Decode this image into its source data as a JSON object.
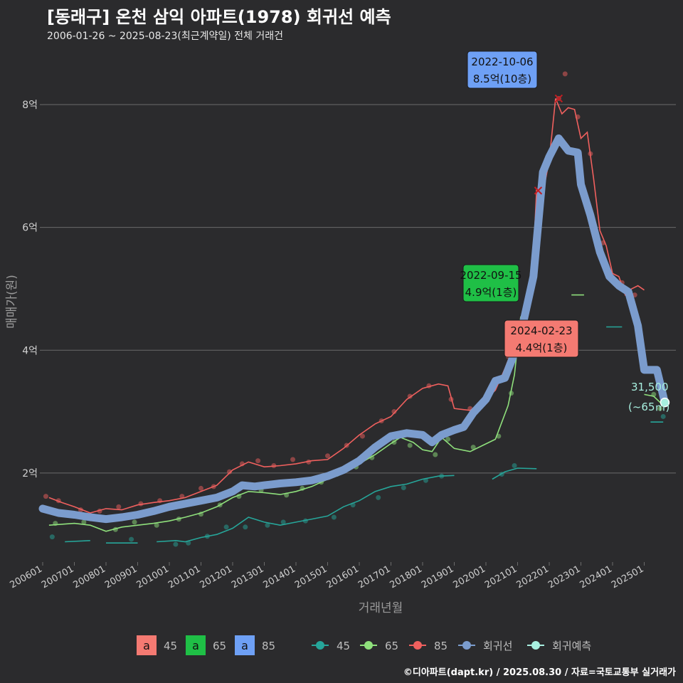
{
  "header": {
    "title": "[동래구] 온천 삼익 아파트(1978) 회귀선 예측",
    "subtitle": "2006-01-26 ~ 2025-08-23(최근계약일) 전체 거래건"
  },
  "footer": {
    "credit": "©디아파트(dapt.kr) / 2025.08.30 / 자료=국토교통부 실거래가"
  },
  "colors": {
    "background": "#2b2b2d",
    "grid": "#6b6b6b",
    "s45": "#26a69a",
    "s65": "#8fe07c",
    "s85": "#f0605e",
    "regression": "#7b9ccd",
    "forecast": "#a8f0e0",
    "label45fill": "#f47a72",
    "label65fill": "#1fbf46",
    "label85fill": "#6ea0f5"
  },
  "chart_data": {
    "type": "line",
    "title": "[동래구] 온천 삼익 아파트(1978) 회귀선 예측",
    "xlabel": "거래년월",
    "ylabel": "매매가(원)",
    "xlim": [
      2006.0,
      2026.0
    ],
    "ylim": [
      0.55,
      8.8
    ],
    "y_ticks": [
      {
        "value": 2,
        "label": "2억"
      },
      {
        "value": 4,
        "label": "4억"
      },
      {
        "value": 6,
        "label": "6억"
      },
      {
        "value": 8,
        "label": "8억"
      }
    ],
    "x_ticks": [
      "200601",
      "200701",
      "200801",
      "200901",
      "201001",
      "201101",
      "201201",
      "201301",
      "201401",
      "201501",
      "201601",
      "201701",
      "201801",
      "201901",
      "202001",
      "202101",
      "202201",
      "202301",
      "202401",
      "202501"
    ],
    "series": [
      {
        "name": "45",
        "key": "s45",
        "segments": [
          [
            [
              2006.7,
              0.88
            ],
            [
              2007.5,
              0.9
            ]
          ],
          [
            [
              2008.0,
              0.86
            ],
            [
              2009.0,
              0.86
            ]
          ],
          [
            [
              2009.6,
              0.88
            ],
            [
              2010.2,
              0.9
            ],
            [
              2010.5,
              0.88
            ],
            [
              2011.0,
              0.95
            ],
            [
              2011.5,
              1.0
            ],
            [
              2012.0,
              1.1
            ],
            [
              2012.5,
              1.28
            ],
            [
              2013.0,
              1.2
            ],
            [
              2013.5,
              1.15
            ],
            [
              2014.0,
              1.2
            ],
            [
              2014.5,
              1.25
            ],
            [
              2015.0,
              1.3
            ],
            [
              2015.5,
              1.45
            ],
            [
              2016.0,
              1.55
            ],
            [
              2016.5,
              1.7
            ],
            [
              2017.0,
              1.78
            ],
            [
              2017.5,
              1.82
            ],
            [
              2018.0,
              1.9
            ],
            [
              2018.5,
              1.95
            ],
            [
              2019.0,
              1.96
            ]
          ],
          [
            [
              2020.2,
              1.9
            ],
            [
              2020.6,
              2.02
            ],
            [
              2021.0,
              2.08
            ],
            [
              2021.6,
              2.07
            ]
          ],
          [
            [
              2023.8,
              4.38
            ],
            [
              2024.3,
              4.38
            ]
          ],
          [
            [
              2025.2,
              2.83
            ],
            [
              2025.6,
              2.83
            ]
          ]
        ],
        "points": [
          [
            2006.3,
            0.96
          ],
          [
            2008.8,
            0.92
          ],
          [
            2010.2,
            0.84
          ],
          [
            2010.6,
            0.86
          ],
          [
            2011.2,
            0.97
          ],
          [
            2011.8,
            1.12
          ],
          [
            2012.4,
            1.12
          ],
          [
            2013.1,
            1.15
          ],
          [
            2013.6,
            1.2
          ],
          [
            2014.3,
            1.22
          ],
          [
            2015.2,
            1.28
          ],
          [
            2015.8,
            1.48
          ],
          [
            2016.6,
            1.6
          ],
          [
            2017.4,
            1.76
          ],
          [
            2018.1,
            1.88
          ],
          [
            2018.6,
            1.95
          ],
          [
            2020.5,
            1.98
          ],
          [
            2020.9,
            2.12
          ],
          [
            2025.6,
            2.92
          ]
        ]
      },
      {
        "name": "65",
        "key": "s65",
        "segments": [
          [
            [
              2006.2,
              1.15
            ],
            [
              2007.0,
              1.18
            ],
            [
              2007.5,
              1.15
            ],
            [
              2008.0,
              1.05
            ],
            [
              2008.5,
              1.12
            ],
            [
              2009.0,
              1.15
            ],
            [
              2009.5,
              1.18
            ],
            [
              2010.0,
              1.22
            ],
            [
              2010.5,
              1.28
            ],
            [
              2011.0,
              1.35
            ],
            [
              2011.5,
              1.45
            ],
            [
              2012.0,
              1.6
            ],
            [
              2012.5,
              1.7
            ],
            [
              2013.0,
              1.68
            ],
            [
              2013.5,
              1.65
            ],
            [
              2014.0,
              1.7
            ],
            [
              2014.5,
              1.78
            ],
            [
              2015.0,
              1.9
            ],
            [
              2015.5,
              2.05
            ],
            [
              2016.0,
              2.15
            ],
            [
              2016.5,
              2.3
            ],
            [
              2017.0,
              2.48
            ],
            [
              2017.3,
              2.58
            ],
            [
              2017.7,
              2.5
            ],
            [
              2018.0,
              2.38
            ],
            [
              2018.3,
              2.35
            ],
            [
              2018.6,
              2.58
            ],
            [
              2019.0,
              2.4
            ],
            [
              2019.5,
              2.35
            ],
            [
              2019.9,
              2.45
            ],
            [
              2020.3,
              2.55
            ],
            [
              2020.7,
              3.1
            ],
            [
              2020.9,
              3.6
            ],
            [
              2021.1,
              4.55
            ]
          ],
          [
            [
              2022.7,
              4.9
            ],
            [
              2023.1,
              4.9
            ]
          ],
          [
            [
              2025.0,
              3.28
            ],
            [
              2025.3,
              3.25
            ],
            [
              2025.5,
              3.15
            ],
            [
              2025.6,
              3.15
            ]
          ]
        ],
        "points": [
          [
            2006.4,
            1.18
          ],
          [
            2007.3,
            1.2
          ],
          [
            2008.3,
            1.08
          ],
          [
            2008.9,
            1.2
          ],
          [
            2009.6,
            1.15
          ],
          [
            2010.3,
            1.25
          ],
          [
            2011.0,
            1.33
          ],
          [
            2011.6,
            1.48
          ],
          [
            2012.2,
            1.62
          ],
          [
            2012.9,
            1.72
          ],
          [
            2013.7,
            1.64
          ],
          [
            2014.2,
            1.75
          ],
          [
            2014.8,
            1.85
          ],
          [
            2015.3,
            1.98
          ],
          [
            2015.9,
            2.1
          ],
          [
            2016.4,
            2.25
          ],
          [
            2017.1,
            2.5
          ],
          [
            2017.6,
            2.45
          ],
          [
            2018.4,
            2.3
          ],
          [
            2018.8,
            2.55
          ],
          [
            2019.6,
            2.42
          ],
          [
            2020.4,
            2.6
          ],
          [
            2020.8,
            3.3
          ],
          [
            2025.3,
            3.28
          ],
          [
            2025.5,
            3.05
          ]
        ]
      },
      {
        "name": "85",
        "key": "s85",
        "segments": [
          [
            [
              2006.2,
              1.6
            ],
            [
              2006.6,
              1.52
            ],
            [
              2007.0,
              1.45
            ],
            [
              2007.5,
              1.35
            ],
            [
              2008.0,
              1.42
            ],
            [
              2008.5,
              1.4
            ],
            [
              2009.0,
              1.48
            ],
            [
              2009.5,
              1.52
            ],
            [
              2010.0,
              1.55
            ],
            [
              2010.5,
              1.6
            ],
            [
              2011.0,
              1.7
            ],
            [
              2011.5,
              1.8
            ],
            [
              2012.0,
              2.05
            ],
            [
              2012.5,
              2.18
            ],
            [
              2013.0,
              2.1
            ],
            [
              2013.5,
              2.12
            ],
            [
              2014.0,
              2.15
            ],
            [
              2014.5,
              2.2
            ],
            [
              2015.0,
              2.22
            ],
            [
              2015.5,
              2.4
            ],
            [
              2016.0,
              2.62
            ],
            [
              2016.5,
              2.8
            ],
            [
              2017.0,
              2.92
            ],
            [
              2017.5,
              3.2
            ],
            [
              2018.0,
              3.38
            ],
            [
              2018.5,
              3.45
            ],
            [
              2018.8,
              3.42
            ],
            [
              2019.0,
              3.05
            ],
            [
              2019.5,
              3.02
            ],
            [
              2019.9,
              3.15
            ],
            [
              2020.3,
              3.35
            ],
            [
              2020.6,
              3.7
            ],
            [
              2020.9,
              4.1
            ],
            [
              2021.1,
              4.05
            ],
            [
              2021.3,
              4.6
            ],
            [
              2021.45,
              5.0
            ],
            [
              2021.6,
              6.6
            ],
            [
              2021.8,
              6.55
            ],
            [
              2022.0,
              7.1
            ],
            [
              2022.2,
              8.1
            ],
            [
              2022.4,
              7.85
            ],
            [
              2022.6,
              7.95
            ],
            [
              2022.8,
              7.92
            ],
            [
              2023.0,
              7.45
            ],
            [
              2023.2,
              7.55
            ],
            [
              2023.4,
              6.8
            ],
            [
              2023.6,
              5.95
            ],
            [
              2023.8,
              5.7
            ],
            [
              2024.0,
              5.25
            ],
            [
              2024.2,
              5.2
            ],
            [
              2024.4,
              4.9
            ],
            [
              2024.6,
              5.0
            ],
            [
              2024.8,
              5.05
            ],
            [
              2025.0,
              4.98
            ]
          ]
        ],
        "points": [
          [
            2006.1,
            1.62
          ],
          [
            2006.5,
            1.55
          ],
          [
            2007.2,
            1.4
          ],
          [
            2007.8,
            1.38
          ],
          [
            2008.4,
            1.45
          ],
          [
            2009.1,
            1.5
          ],
          [
            2009.7,
            1.55
          ],
          [
            2010.4,
            1.62
          ],
          [
            2011.0,
            1.75
          ],
          [
            2011.4,
            1.78
          ],
          [
            2011.9,
            2.02
          ],
          [
            2012.3,
            2.15
          ],
          [
            2012.8,
            2.2
          ],
          [
            2013.3,
            2.12
          ],
          [
            2013.9,
            2.22
          ],
          [
            2014.4,
            2.18
          ],
          [
            2015.0,
            2.28
          ],
          [
            2015.6,
            2.45
          ],
          [
            2016.1,
            2.6
          ],
          [
            2016.7,
            2.85
          ],
          [
            2017.1,
            3.0
          ],
          [
            2017.6,
            3.25
          ],
          [
            2018.2,
            3.42
          ],
          [
            2018.9,
            3.2
          ],
          [
            2019.5,
            3.05
          ],
          [
            2020.2,
            3.38
          ],
          [
            2020.7,
            3.9
          ],
          [
            2021.0,
            4.2
          ],
          [
            2021.3,
            4.8
          ],
          [
            2021.5,
            5.45
          ],
          [
            2021.65,
            6.6
          ],
          [
            2022.1,
            7.3
          ],
          [
            2022.3,
            8.1
          ],
          [
            2022.5,
            8.5
          ],
          [
            2022.9,
            7.8
          ],
          [
            2023.3,
            7.2
          ],
          [
            2023.7,
            5.75
          ],
          [
            2024.3,
            5.1
          ],
          [
            2024.7,
            4.9
          ]
        ]
      }
    ],
    "regression": [
      [
        2006.0,
        1.42
      ],
      [
        2006.5,
        1.35
      ],
      [
        2007.0,
        1.32
      ],
      [
        2007.5,
        1.28
      ],
      [
        2008.0,
        1.25
      ],
      [
        2008.5,
        1.28
      ],
      [
        2009.0,
        1.32
      ],
      [
        2009.5,
        1.38
      ],
      [
        2010.0,
        1.45
      ],
      [
        2010.5,
        1.5
      ],
      [
        2011.0,
        1.55
      ],
      [
        2011.5,
        1.6
      ],
      [
        2012.0,
        1.7
      ],
      [
        2012.3,
        1.8
      ],
      [
        2012.7,
        1.78
      ],
      [
        2013.0,
        1.8
      ],
      [
        2013.5,
        1.83
      ],
      [
        2014.0,
        1.85
      ],
      [
        2014.5,
        1.88
      ],
      [
        2015.0,
        1.95
      ],
      [
        2015.5,
        2.05
      ],
      [
        2016.0,
        2.2
      ],
      [
        2016.5,
        2.42
      ],
      [
        2017.0,
        2.6
      ],
      [
        2017.5,
        2.65
      ],
      [
        2018.0,
        2.62
      ],
      [
        2018.3,
        2.5
      ],
      [
        2018.6,
        2.62
      ],
      [
        2019.0,
        2.7
      ],
      [
        2019.3,
        2.75
      ],
      [
        2019.6,
        2.98
      ],
      [
        2020.0,
        3.2
      ],
      [
        2020.3,
        3.5
      ],
      [
        2020.6,
        3.55
      ],
      [
        2020.9,
        3.95
      ],
      [
        2021.2,
        4.5
      ],
      [
        2021.5,
        5.2
      ],
      [
        2021.8,
        6.9
      ],
      [
        2022.0,
        7.15
      ],
      [
        2022.3,
        7.45
      ],
      [
        2022.6,
        7.25
      ],
      [
        2022.9,
        7.22
      ],
      [
        2023.0,
        6.7
      ],
      [
        2023.3,
        6.2
      ],
      [
        2023.6,
        5.6
      ],
      [
        2023.9,
        5.2
      ],
      [
        2024.2,
        5.05
      ],
      [
        2024.5,
        4.95
      ],
      [
        2024.8,
        4.4
      ],
      [
        2025.0,
        3.68
      ],
      [
        2025.4,
        3.68
      ],
      [
        2025.65,
        3.15
      ]
    ],
    "forecast_point": {
      "x": 2025.65,
      "y": 3.15,
      "label_value": "31,500",
      "label_area": "(~65㎡)"
    },
    "annotations": [
      {
        "key": "label85fill",
        "series": "85",
        "date": "2022-10-06",
        "value": "8.5억(10층)",
        "x": 2022.76,
        "y": 8.5
      },
      {
        "key": "label65fill",
        "series": "65",
        "date": "2022-09-15",
        "value": "4.9억(1층)",
        "x": 2022.7,
        "y": 4.9
      },
      {
        "key": "label45fill",
        "series": "45",
        "date": "2024-02-23",
        "value": "4.4억(1층)",
        "x": 2024.15,
        "y": 4.4
      }
    ],
    "legend": {
      "fill_items": [
        {
          "glyph": "a",
          "name": "45",
          "key": "label45fill"
        },
        {
          "glyph": "a",
          "name": "65",
          "key": "label65fill"
        },
        {
          "glyph": "a",
          "name": "85",
          "key": "label85fill"
        }
      ],
      "line_items": [
        {
          "name": "45",
          "key": "s45"
        },
        {
          "name": "65",
          "key": "s65"
        },
        {
          "name": "85",
          "key": "s85"
        },
        {
          "name": "회귀선",
          "key": "regression"
        },
        {
          "name": "회귀예측",
          "key": "forecast"
        }
      ],
      "position": "bottom"
    }
  }
}
